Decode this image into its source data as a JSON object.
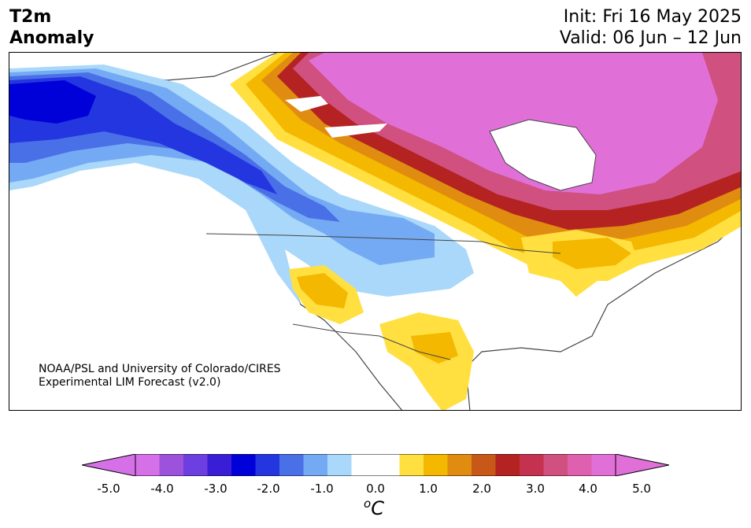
{
  "title": {
    "line1": "T2m",
    "line2": "Anomaly"
  },
  "forecast": {
    "init": "Init: Fri 16 May 2025",
    "valid": "Valid: 06 Jun – 12 Jun"
  },
  "credit": {
    "line1": "NOAA/PSL and University of Colorado/CIRES",
    "line2": "Experimental LIM Forecast (v2.0)"
  },
  "colorbar": {
    "unit_letter": "C",
    "unit_degree": "o",
    "ticks": [
      "-5.0",
      "-4.0",
      "-3.0",
      "-2.0",
      "-1.0",
      "0.0",
      "1.0",
      "2.0",
      "3.0",
      "4.0",
      "5.0"
    ],
    "colors": [
      "#d670e8",
      "#9d52dc",
      "#6d3ee0",
      "#3a1ed6",
      "#0000d8",
      "#2436e0",
      "#4a70e8",
      "#74aaf4",
      "#aad8fa",
      "#ffffff",
      "#ffffff",
      "#ffe040",
      "#f4b800",
      "#e08c10",
      "#c85818",
      "#b42222",
      "#c43250",
      "#d05080",
      "#e060b0",
      "#e070d8"
    ],
    "under_color": "#d670e8",
    "over_color": "#e070d8"
  },
  "map_colors": {
    "cold_deep": "#0000d8",
    "cold": "#2436e0",
    "cool": "#4a70e8",
    "cool_light": "#74aaf4",
    "cool_pale": "#aad8fa",
    "warm_pale": "#ffe040",
    "warm": "#f4b800",
    "warm_orange": "#e08c10",
    "hot": "#b42222",
    "hot_pink": "#d05080",
    "hot_magenta": "#e070d8"
  }
}
